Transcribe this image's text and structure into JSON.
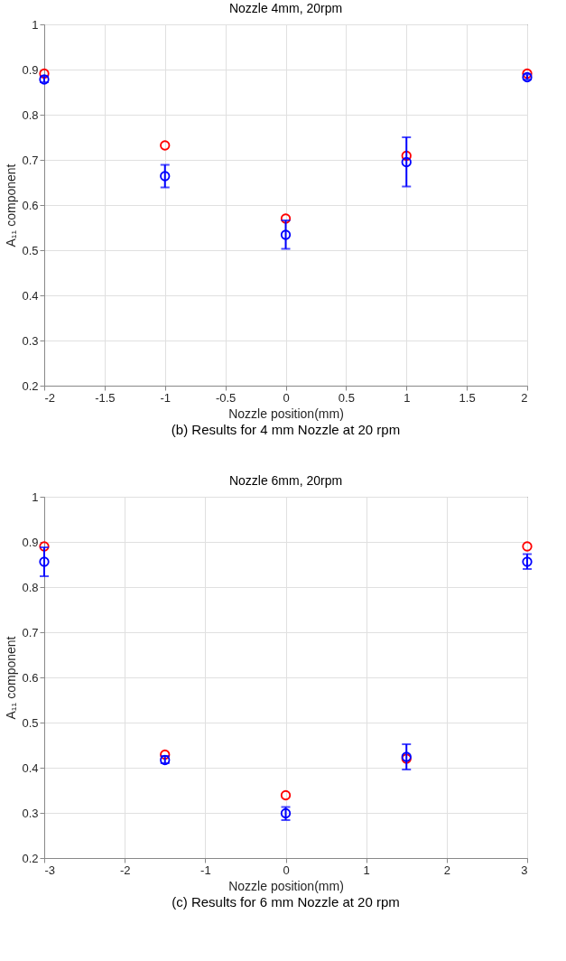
{
  "chart_data": [
    {
      "type": "scatter",
      "title": "Nozzle 4mm, 20rpm",
      "xlabel": "Nozzle position(mm)",
      "ylabel": "A₁₁ component",
      "annotations": [
        "(b) Results for 4 mm Nozzle at 20 rpm"
      ],
      "x": [
        -2,
        -1,
        0,
        1,
        2
      ],
      "series": [
        {
          "color": "#ff0000",
          "values": [
            0.891,
            0.732,
            0.57,
            0.709,
            0.891
          ]
        },
        {
          "color": "#0000ff",
          "values": [
            0.878,
            0.664,
            0.534,
            0.695,
            0.883
          ],
          "errors": [
            [
              0.872,
              0.885
            ],
            [
              0.639,
              0.689
            ],
            [
              0.503,
              0.566
            ],
            [
              0.641,
              0.75
            ],
            [
              0.878,
              0.889
            ]
          ]
        }
      ],
      "xlim": [
        -2,
        2
      ],
      "xticks": [
        -2,
        -1.5,
        -1,
        -0.5,
        0,
        0.5,
        1,
        1.5,
        2
      ],
      "ylim": [
        0.2,
        1
      ],
      "yticks": [
        0.2,
        0.3,
        0.4,
        0.5,
        0.6,
        0.7,
        0.8,
        0.9,
        1
      ],
      "grid": true,
      "marker": "circle"
    },
    {
      "type": "scatter",
      "title": "Nozzle 6mm, 20rpm",
      "xlabel": "Nozzle position(mm)",
      "ylabel": "A₁₁ component",
      "annotations": [
        "(c) Results for 6 mm Nozzle at 20 rpm"
      ],
      "x": [
        -3,
        -1.5,
        0,
        1.5,
        3
      ],
      "series": [
        {
          "color": "#ff0000",
          "values": [
            0.89,
            0.429,
            0.339,
            0.42,
            0.89
          ]
        },
        {
          "color": "#0000ff",
          "values": [
            0.856,
            0.417,
            0.299,
            0.424,
            0.856
          ],
          "errors": [
            [
              0.824,
              0.888
            ],
            [
              0.41,
              0.426
            ],
            [
              0.284,
              0.313
            ],
            [
              0.396,
              0.452
            ],
            [
              0.84,
              0.873
            ]
          ]
        }
      ],
      "xlim": [
        -3,
        3
      ],
      "xticks": [
        -3,
        -2,
        -1,
        0,
        1,
        2,
        3
      ],
      "ylim": [
        0.2,
        1
      ],
      "yticks": [
        0.2,
        0.3,
        0.4,
        0.5,
        0.6,
        0.7,
        0.8,
        0.9,
        1
      ],
      "grid": true,
      "marker": "circle"
    }
  ]
}
